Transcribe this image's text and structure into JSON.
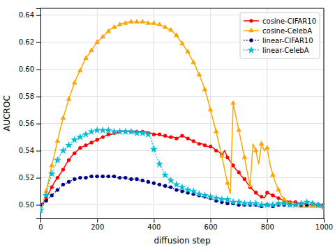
{
  "chart_data": {
    "type": "line",
    "xlabel": "diffusion step",
    "ylabel": "AUCROC",
    "xlim": [
      0,
      1000
    ],
    "ylim": [
      0.49,
      0.645
    ],
    "xticks": [
      0,
      200,
      400,
      600,
      800,
      1000
    ],
    "yticks": [
      {
        "value": 0.5,
        "label": "0.50"
      },
      0.52,
      0.54,
      0.56,
      0.58,
      {
        "value": 0.6,
        "label": "0.60"
      },
      0.62,
      0.64
    ],
    "grid": true,
    "legend": "upper-right",
    "x": [
      0,
      10,
      20,
      30,
      40,
      50,
      60,
      70,
      80,
      90,
      100,
      110,
      120,
      130,
      140,
      150,
      160,
      170,
      180,
      190,
      200,
      210,
      220,
      230,
      240,
      250,
      260,
      270,
      280,
      290,
      300,
      310,
      320,
      330,
      340,
      350,
      360,
      370,
      380,
      390,
      400,
      410,
      420,
      430,
      440,
      450,
      460,
      470,
      480,
      490,
      500,
      510,
      520,
      530,
      540,
      550,
      560,
      570,
      580,
      590,
      600,
      610,
      620,
      630,
      640,
      650,
      660,
      670,
      680,
      690,
      700,
      710,
      720,
      730,
      740,
      750,
      760,
      770,
      780,
      790,
      800,
      810,
      820,
      830,
      840,
      850,
      860,
      870,
      880,
      890,
      900,
      910,
      920,
      930,
      940,
      950,
      960,
      970,
      980,
      990,
      1000
    ],
    "series": [
      {
        "name": "cosine-CIFAR10",
        "color": "#ff0000",
        "line_style": "solid",
        "marker": "circle",
        "values": [
          0.5,
          0.502,
          0.505,
          0.509,
          0.513,
          0.517,
          0.52,
          0.523,
          0.526,
          0.53,
          0.533,
          0.536,
          0.538,
          0.54,
          0.542,
          0.543,
          0.544,
          0.545,
          0.546,
          0.547,
          0.548,
          0.549,
          0.55,
          0.551,
          0.552,
          0.552,
          0.553,
          0.553,
          0.554,
          0.554,
          0.554,
          0.554,
          0.554,
          0.554,
          0.554,
          0.554,
          0.554,
          0.554,
          0.553,
          0.553,
          0.552,
          0.552,
          0.552,
          0.551,
          0.551,
          0.55,
          0.55,
          0.55,
          0.549,
          0.55,
          0.551,
          0.55,
          0.549,
          0.548,
          0.547,
          0.546,
          0.545,
          0.545,
          0.544,
          0.543,
          0.543,
          0.542,
          0.54,
          0.539,
          0.537,
          0.54,
          0.535,
          0.532,
          0.529,
          0.526,
          0.524,
          0.521,
          0.519,
          0.516,
          0.513,
          0.511,
          0.509,
          0.507,
          0.506,
          0.505,
          0.509,
          0.508,
          0.507,
          0.506,
          0.505,
          0.504,
          0.503,
          0.503,
          0.502,
          0.502,
          0.502,
          0.501,
          0.501,
          0.501,
          0.5,
          0.5,
          0.5,
          0.5,
          0.5,
          0.5,
          0.5
        ]
      },
      {
        "name": "cosine-CelebA",
        "color": "#ffa500",
        "line_style": "solid",
        "marker": "triangle",
        "values": [
          0.497,
          0.502,
          0.51,
          0.519,
          0.529,
          0.538,
          0.547,
          0.556,
          0.564,
          0.571,
          0.578,
          0.584,
          0.59,
          0.595,
          0.599,
          0.604,
          0.608,
          0.611,
          0.614,
          0.617,
          0.62,
          0.622,
          0.624,
          0.626,
          0.628,
          0.63,
          0.631,
          0.632,
          0.633,
          0.634,
          0.634,
          0.635,
          0.635,
          0.635,
          0.635,
          0.635,
          0.635,
          0.635,
          0.634,
          0.634,
          0.634,
          0.633,
          0.633,
          0.632,
          0.631,
          0.63,
          0.629,
          0.627,
          0.625,
          0.622,
          0.619,
          0.616,
          0.613,
          0.609,
          0.605,
          0.601,
          0.596,
          0.591,
          0.585,
          0.578,
          0.57,
          0.562,
          0.554,
          0.545,
          0.536,
          0.526,
          0.516,
          0.508,
          0.575,
          0.565,
          0.555,
          0.545,
          0.535,
          0.524,
          0.514,
          0.545,
          0.54,
          0.53,
          0.545,
          0.54,
          0.542,
          0.53,
          0.522,
          0.516,
          0.511,
          0.507,
          0.504,
          0.502,
          0.501,
          0.5,
          0.5,
          0.499,
          0.499,
          0.499,
          0.499,
          0.499,
          0.499,
          0.499,
          0.499,
          0.498,
          0.498
        ]
      },
      {
        "name": "linear-CIFAR10",
        "color": "#00008b",
        "line_style": "dotted",
        "marker": "circle",
        "values": [
          0.5,
          0.501,
          0.503,
          0.505,
          0.507,
          0.509,
          0.511,
          0.513,
          0.515,
          0.516,
          0.517,
          0.518,
          0.519,
          0.519,
          0.52,
          0.52,
          0.52,
          0.521,
          0.521,
          0.521,
          0.521,
          0.521,
          0.521,
          0.521,
          0.521,
          0.521,
          0.521,
          0.52,
          0.52,
          0.52,
          0.52,
          0.519,
          0.519,
          0.519,
          0.519,
          0.518,
          0.518,
          0.517,
          0.517,
          0.516,
          0.516,
          0.515,
          0.515,
          0.514,
          0.514,
          0.513,
          0.513,
          0.512,
          0.511,
          0.511,
          0.51,
          0.51,
          0.509,
          0.508,
          0.508,
          0.507,
          0.507,
          0.506,
          0.506,
          0.505,
          0.505,
          0.504,
          0.503,
          0.503,
          0.502,
          0.502,
          0.501,
          0.501,
          0.501,
          0.5,
          0.5,
          0.5,
          0.5,
          0.5,
          0.5,
          0.5,
          0.5,
          0.499,
          0.499,
          0.5,
          0.5,
          0.499,
          0.499,
          0.5,
          0.5,
          0.5,
          0.5,
          0.5,
          0.5,
          0.5,
          0.5,
          0.5,
          0.5,
          0.5,
          0.5,
          0.5,
          0.501,
          0.5,
          0.5,
          0.499,
          0.499
        ]
      },
      {
        "name": "linear-CelebA",
        "color": "#00bcd4",
        "line_style": "dotted",
        "marker": "star",
        "values": [
          0.496,
          0.499,
          0.507,
          0.516,
          0.523,
          0.528,
          0.533,
          0.537,
          0.54,
          0.542,
          0.544,
          0.546,
          0.548,
          0.549,
          0.55,
          0.552,
          0.552,
          0.553,
          0.554,
          0.554,
          0.555,
          0.555,
          0.555,
          0.555,
          0.555,
          0.555,
          0.554,
          0.554,
          0.554,
          0.554,
          0.554,
          0.554,
          0.554,
          0.553,
          0.553,
          0.553,
          0.553,
          0.552,
          0.552,
          0.549,
          0.541,
          0.535,
          0.53,
          0.526,
          0.522,
          0.52,
          0.518,
          0.516,
          0.515,
          0.514,
          0.513,
          0.512,
          0.511,
          0.51,
          0.51,
          0.509,
          0.508,
          0.508,
          0.507,
          0.507,
          0.506,
          0.506,
          0.505,
          0.505,
          0.504,
          0.504,
          0.504,
          0.503,
          0.502,
          0.502,
          0.502,
          0.502,
          0.501,
          0.501,
          0.501,
          0.501,
          0.501,
          0.5,
          0.5,
          0.5,
          0.5,
          0.5,
          0.5,
          0.5,
          0.501,
          0.501,
          0.501,
          0.501,
          0.5,
          0.5,
          0.5,
          0.501,
          0.501,
          0.501,
          0.502,
          0.501,
          0.501,
          0.5,
          0.5,
          0.499,
          0.499
        ]
      }
    ]
  }
}
